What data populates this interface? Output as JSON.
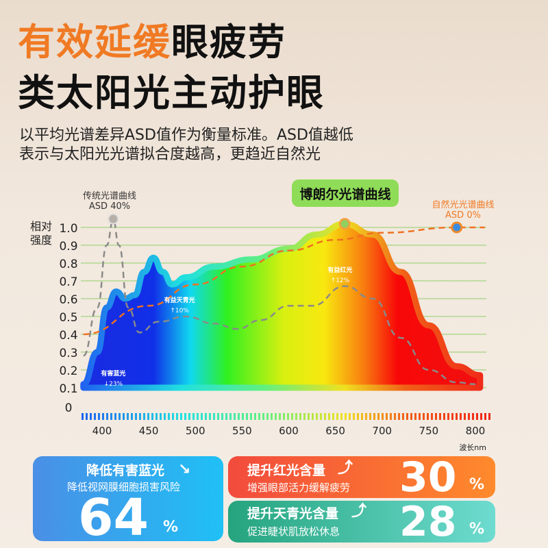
{
  "title": {
    "highlight": "有效延缓",
    "rest": "眼疲劳",
    "line2": "类太阳光主动护眼"
  },
  "subtitle": [
    "以平均光谱差异ASD值作为衡量标准。ASD值越低",
    "表示与太阳光光谱拟合度越高，更趋近自然光"
  ],
  "colors": {
    "accent": "#f07a24",
    "boru": "#f08a2a",
    "traditional": "#8a8a8a",
    "natural": "#f07020"
  },
  "chart_data": {
    "type": "line",
    "ylabel": [
      "相对",
      "强度"
    ],
    "xlabel": "波长nm",
    "yticks": [
      "0",
      "0.1",
      "0.2",
      "0.3",
      "0.4",
      "0.5",
      "0.6",
      "0.7",
      "0.8",
      "0.9",
      "1.0"
    ],
    "xticks": [
      "400",
      "450",
      "500",
      "550",
      "600",
      "650",
      "700",
      "750",
      "800"
    ],
    "xlim": [
      380,
      810
    ],
    "ylim": [
      0,
      1.05
    ],
    "series": [
      {
        "name": "博朗尔光谱曲线",
        "type": "area",
        "x": [
          380,
          395,
          405,
          415,
          425,
          435,
          445,
          455,
          465,
          475,
          490,
          520,
          560,
          600,
          630,
          660,
          690,
          720,
          750,
          780,
          805
        ],
        "y": [
          0.12,
          0.3,
          0.55,
          0.64,
          0.6,
          0.62,
          0.75,
          0.83,
          0.75,
          0.68,
          0.72,
          0.78,
          0.82,
          0.88,
          0.96,
          1.02,
          0.96,
          0.75,
          0.45,
          0.22,
          0.17
        ]
      },
      {
        "name": "传统光谱曲线",
        "asd": "ASD 40%",
        "x": [
          380,
          395,
          405,
          412,
          418,
          428,
          440,
          460,
          490,
          520,
          545,
          570,
          600,
          625,
          660,
          690,
          720,
          750,
          780,
          800
        ],
        "y": [
          0.28,
          0.55,
          0.9,
          1.04,
          0.9,
          0.55,
          0.41,
          0.47,
          0.5,
          0.46,
          0.43,
          0.48,
          0.56,
          0.56,
          0.67,
          0.6,
          0.38,
          0.2,
          0.13,
          0.12
        ]
      },
      {
        "name": "自然光光谱曲线",
        "asd": "ASD 0%",
        "x": [
          380,
          450,
          500,
          550,
          600,
          650,
          700,
          780,
          810
        ],
        "y": [
          0.4,
          0.56,
          0.68,
          0.78,
          0.87,
          0.93,
          0.97,
          1.0,
          1.0
        ]
      }
    ],
    "annotations": [
      {
        "label": "有害蓝光",
        "change": "↓23%",
        "x": 412,
        "y": 0.17
      },
      {
        "label": "有益天青光",
        "change": "↑10%",
        "x": 483,
        "y": 0.58
      },
      {
        "label": "有益红光",
        "change": "↑12%",
        "x": 655,
        "y": 0.75
      }
    ]
  },
  "cards": [
    {
      "title": "降低有害蓝光",
      "desc": "降低视网膜细胞损害风险",
      "value": "64",
      "unit": "%"
    },
    {
      "title": "提升红光含量",
      "desc": "增强眼部活力缓解疲劳",
      "value": "30",
      "unit": "%"
    },
    {
      "title": "提升天青光含量",
      "desc": "促进睫状肌放松休息",
      "value": "28",
      "unit": "%"
    }
  ]
}
